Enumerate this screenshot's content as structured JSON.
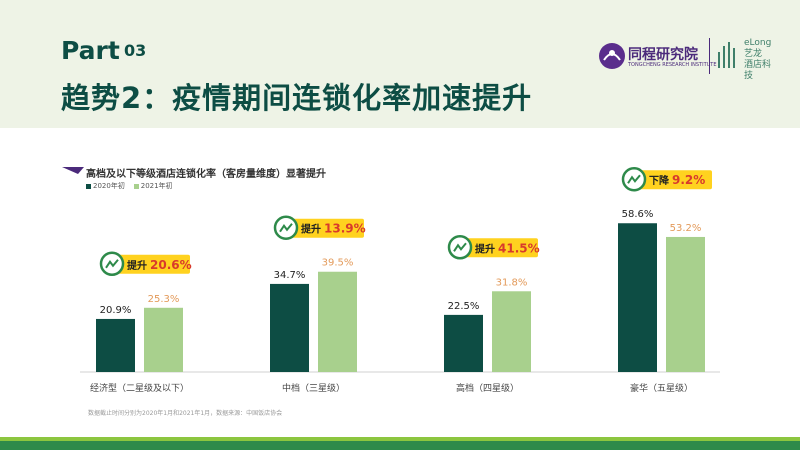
{
  "header": {
    "part_label": "Part",
    "part_number": "03",
    "title": "趋势2：疫情期间连锁化率加速提升",
    "logo_main": "同程研究院",
    "logo_small": "TONGCHENG RESEARCH INSTITUTE",
    "elong_line1": "eLong",
    "elong_line2": "艺龙",
    "elong_line3": "酒店科技"
  },
  "chart_data": {
    "type": "bar",
    "title": "高档及以下等级酒店连锁化率（客房量维度）显著提升",
    "categories": [
      "经济型（二星级及以下）",
      "中档（三星级）",
      "高档（四星级）",
      "豪华（五星级）"
    ],
    "series": [
      {
        "name": "2020年初",
        "values": [
          20.9,
          34.7,
          22.5,
          58.6
        ],
        "labels": [
          "20.9%",
          "34.7%",
          "22.5%",
          "58.6%"
        ],
        "color": "#0d4d44"
      },
      {
        "name": "2021年初",
        "values": [
          25.3,
          39.5,
          31.8,
          53.2
        ],
        "labels": [
          "25.3%",
          "39.5%",
          "31.8%",
          "53.2%"
        ],
        "color": "#a8d08d"
      }
    ],
    "ylim": [
      0,
      65
    ],
    "annotations": [
      {
        "direction": "提升",
        "value": "20.6%"
      },
      {
        "direction": "提升",
        "value": "13.9%"
      },
      {
        "direction": "提升",
        "value": "41.5%"
      },
      {
        "direction": "下降",
        "value": "9.2%"
      }
    ],
    "colors": {
      "badge_bg": "#ffd21f",
      "highlight": "#d83a2c",
      "label_2021": "#e39a5a"
    }
  },
  "footer": {
    "note": "数据截止时间分别为2020年1月和2021年1月，数据来源：中国饭店协会"
  }
}
